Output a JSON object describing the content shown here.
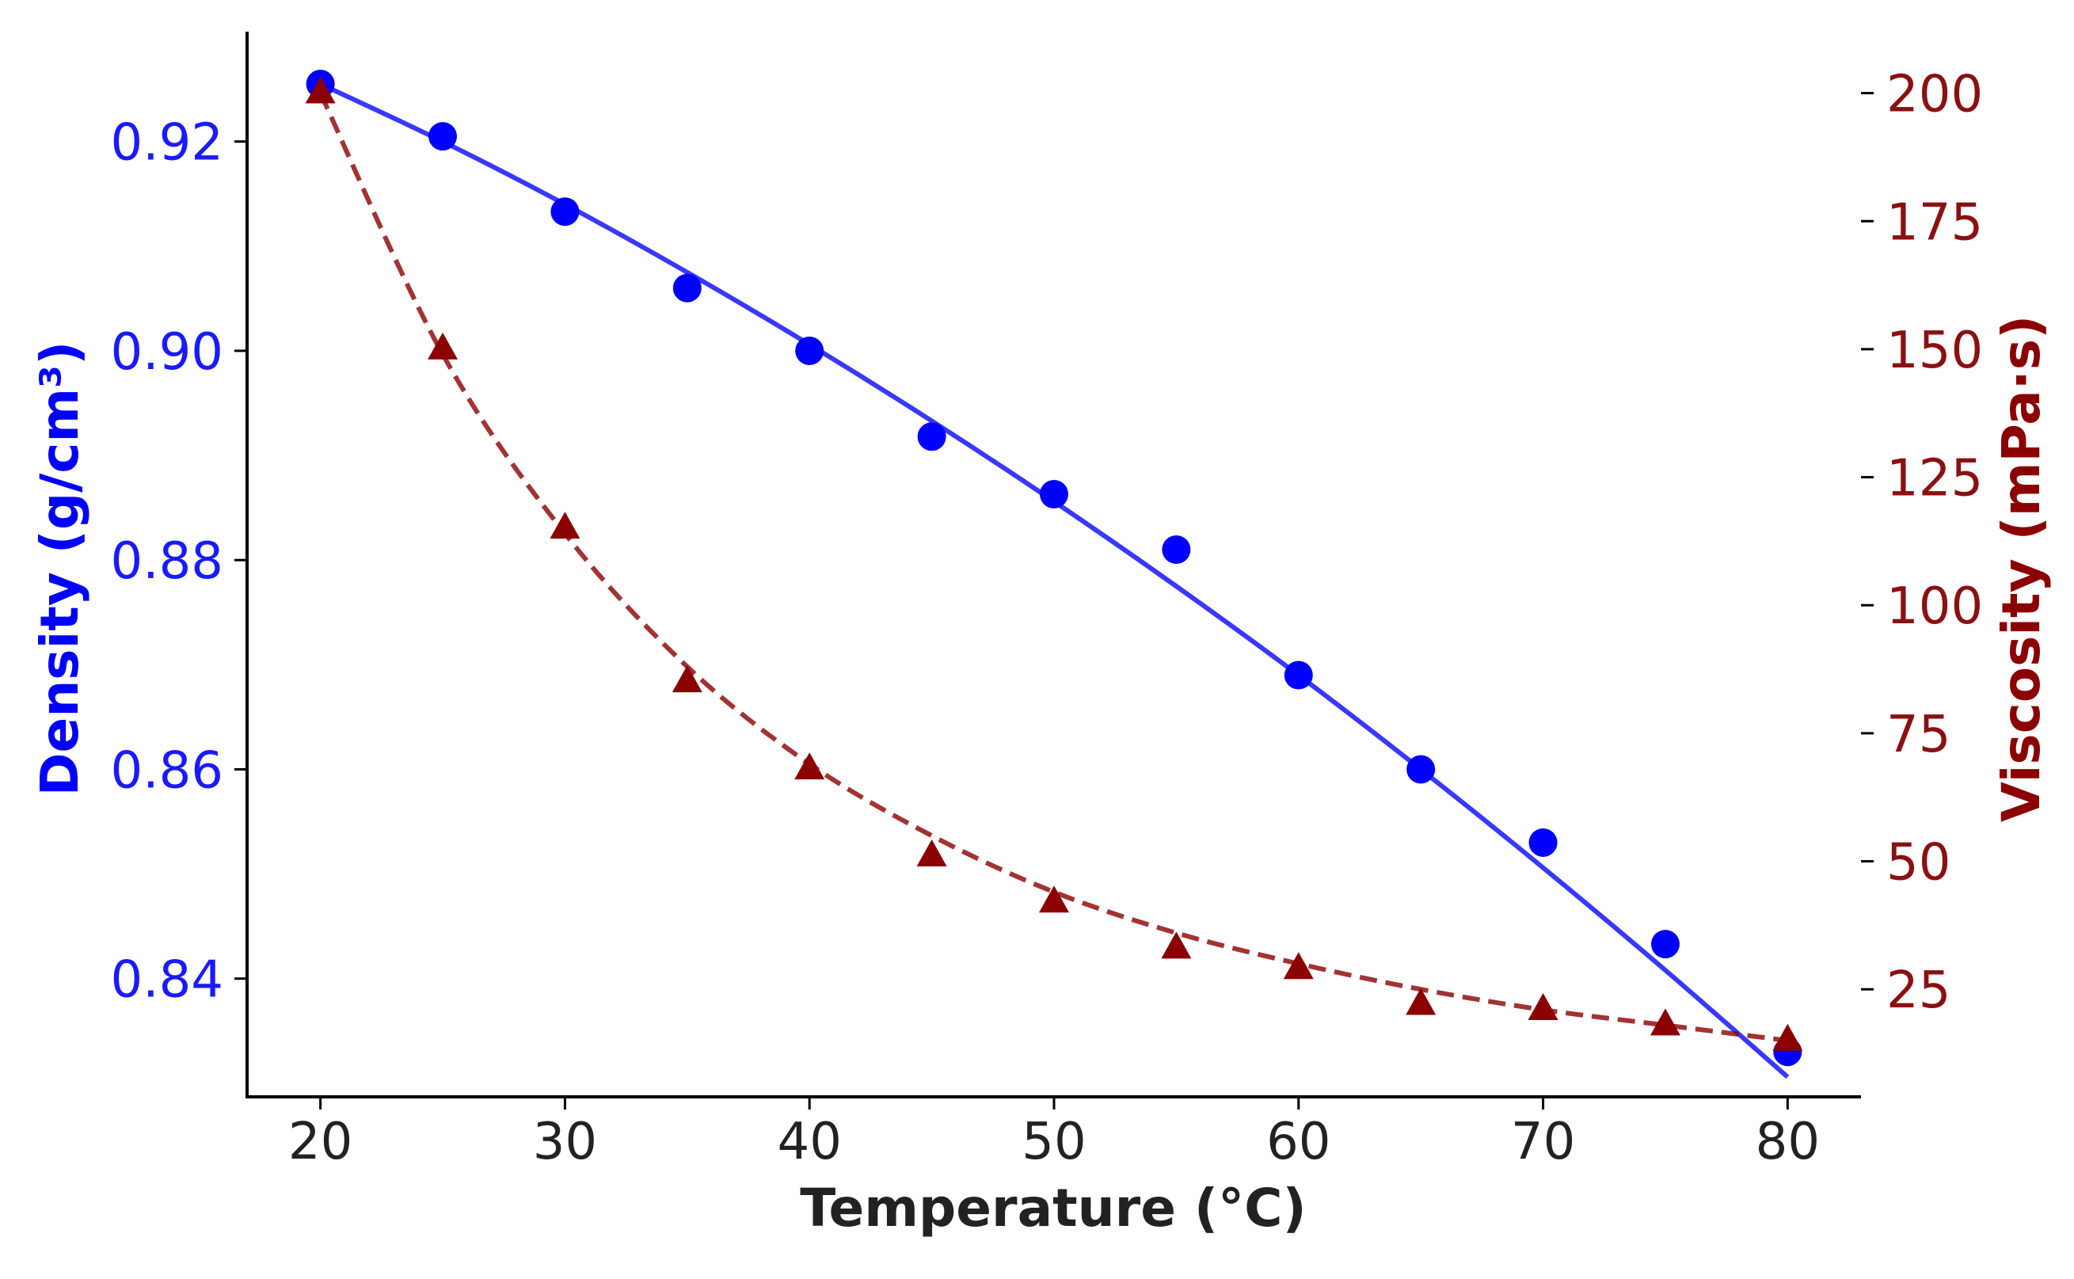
{
  "chart_data": {
    "type": "line",
    "title": "",
    "xlabel": "Temperature (°C)",
    "ylabel_left": "Density (g/cm³)",
    "ylabel_right": "Viscosity (mPa·s)",
    "xlim": [
      17,
      83
    ],
    "ylim_left": [
      0.8287,
      0.9305
    ],
    "ylim_right": [
      4,
      212
    ],
    "x_ticks": [
      "20",
      "30",
      "40",
      "50",
      "60",
      "70",
      "80"
    ],
    "y_left_ticks": [
      "0.84",
      "0.86",
      "0.88",
      "0.90",
      "0.92"
    ],
    "y_right_ticks": [
      "25",
      "50",
      "75",
      "100",
      "125",
      "150",
      "175",
      "200"
    ],
    "grid": false,
    "colors": {
      "density": "#0000ff",
      "viscosity": "#8b0000",
      "axis": "#000000"
    },
    "x": [
      20,
      25,
      30,
      35,
      40,
      45,
      50,
      55,
      60,
      65,
      70,
      75,
      80
    ],
    "series": [
      {
        "name": "Density",
        "axis": "left",
        "marker": "circle",
        "line": "solid",
        "values": [
          0.9255,
          0.9205,
          0.9133,
          0.906,
          0.9,
          0.8918,
          0.8863,
          0.881,
          0.869,
          0.86,
          0.853,
          0.8433,
          0.833
        ],
        "fit": [
          0.9255,
          0.92,
          0.914,
          0.9075,
          0.9006,
          0.8933,
          0.8856,
          0.8775,
          0.869,
          0.86,
          0.8506,
          0.8408,
          0.8306
        ]
      },
      {
        "name": "Viscosity",
        "axis": "right",
        "marker": "triangle",
        "line": "dashed",
        "values": [
          200,
          150,
          115,
          85,
          68,
          51,
          42,
          33,
          29,
          22,
          21,
          18,
          15
        ],
        "fit": [
          200,
          149,
          114,
          88,
          69,
          55,
          44,
          36,
          30,
          25,
          21,
          18,
          15
        ]
      }
    ]
  }
}
